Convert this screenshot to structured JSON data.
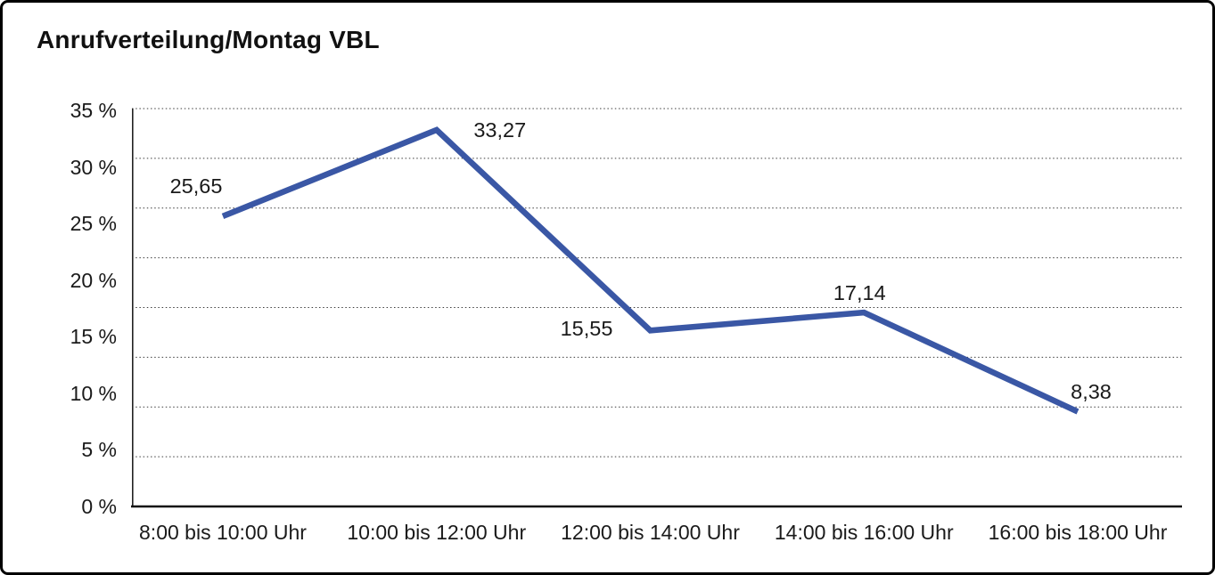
{
  "title": "Anrufverteilung/Montag VBL",
  "chart_data": {
    "type": "line",
    "title": "Anrufverteilung/Montag VBL",
    "categories": [
      "8:00 bis 10:00 Uhr",
      "10:00 bis 12:00 Uhr",
      "12:00 bis 14:00 Uhr",
      "14:00 bis 16:00 Uhr",
      "16:00 bis 18:00 Uhr"
    ],
    "values": [
      25.65,
      33.27,
      15.55,
      17.14,
      8.38
    ],
    "value_labels": [
      "25,65",
      "33,27",
      "15,55",
      "17,14",
      "8,38"
    ],
    "y_ticks": [
      "35 %",
      "30 %",
      "25 %",
      "20 %",
      "15 %",
      "10 %",
      "5 %",
      "0 %"
    ],
    "y_tick_values": [
      35,
      30,
      25,
      20,
      15,
      10,
      5,
      0
    ],
    "ylim": [
      0,
      35
    ],
    "xlabel": "",
    "ylabel": "",
    "legend": "none",
    "grid": "horizontal-dotted-8-bands",
    "line_color": "#3A57A5",
    "axis_color": "#1a1a1a",
    "text_color": "#1a1a1a"
  }
}
